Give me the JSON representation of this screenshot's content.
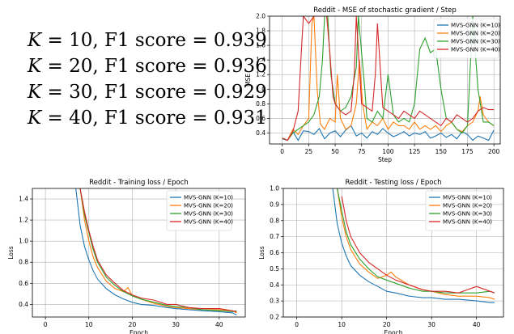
{
  "f1_results": [
    {
      "k_label": "K",
      "k_value": "= 10,",
      "metric": "F1 score",
      "score": "= 0.939"
    },
    {
      "k_label": "K",
      "k_value": "= 20,",
      "metric": "F1 score",
      "score": "= 0.936"
    },
    {
      "k_label": "K",
      "k_value": "= 30,",
      "metric": "F1 score",
      "score": "= 0.929"
    },
    {
      "k_label": "K",
      "k_value": "= 40,",
      "metric": "F1 score",
      "score": "= 0.931"
    }
  ],
  "colors": {
    "K10": "#1f77b4",
    "K20": "#ff7f0e",
    "K30": "#2ca02c",
    "K40": "#d62728"
  },
  "chart_data": [
    {
      "type": "line",
      "title": "Reddit - MSE of stochastic gradient / Step",
      "xlabel": "Step",
      "ylabel": "MSE",
      "xlim": [
        -12,
        206
      ],
      "ylim": [
        0.25,
        2.0
      ],
      "xticks": [
        0,
        25,
        50,
        75,
        100,
        125,
        150,
        175,
        200
      ],
      "yticks": [
        0.4,
        0.6,
        0.8,
        1.0,
        1.2,
        1.4,
        1.6,
        1.8,
        2.0
      ],
      "ytick_labels": [
        "0.4",
        "0.6",
        "0.8",
        "1.0",
        "1.2",
        "1.4",
        "1.6",
        "1.8",
        "2.0"
      ],
      "grid": true,
      "legend": "top-right",
      "series": [
        {
          "name": "MVS-GNN (K=10)",
          "color": "#1f77b4",
          "x": [
            0,
            5,
            10,
            15,
            20,
            25,
            30,
            35,
            40,
            45,
            50,
            55,
            60,
            65,
            70,
            75,
            80,
            85,
            90,
            95,
            100,
            105,
            110,
            115,
            120,
            125,
            130,
            135,
            140,
            145,
            150,
            155,
            160,
            165,
            170,
            175,
            180,
            185,
            190,
            195,
            200
          ],
          "values": [
            0.32,
            0.3,
            0.42,
            0.3,
            0.43,
            0.42,
            0.38,
            0.46,
            0.32,
            0.4,
            0.43,
            0.35,
            0.44,
            0.5,
            0.36,
            0.4,
            0.33,
            0.42,
            0.38,
            0.46,
            0.4,
            0.35,
            0.38,
            0.42,
            0.36,
            0.4,
            0.38,
            0.42,
            0.33,
            0.36,
            0.4,
            0.34,
            0.38,
            0.32,
            0.42,
            0.38,
            0.3,
            0.36,
            0.33,
            0.3,
            0.44
          ]
        },
        {
          "name": "MVS-GNN (K=20)",
          "color": "#ff7f0e",
          "x": [
            0,
            5,
            10,
            15,
            20,
            25,
            28,
            30,
            33,
            36,
            40,
            45,
            50,
            52,
            55,
            60,
            65,
            70,
            73,
            76,
            80,
            85,
            90,
            95,
            100,
            105,
            110,
            115,
            120,
            125,
            130,
            135,
            140,
            145,
            150,
            155,
            160,
            165,
            170,
            175,
            180,
            185,
            187,
            190,
            195,
            200
          ],
          "values": [
            0.33,
            0.3,
            0.45,
            0.38,
            0.5,
            0.6,
            1.9,
            2.0,
            1.0,
            0.52,
            0.45,
            0.6,
            0.55,
            1.2,
            0.6,
            0.45,
            0.5,
            0.8,
            1.4,
            0.8,
            0.45,
            0.55,
            0.5,
            0.6,
            0.45,
            0.55,
            0.5,
            0.5,
            0.45,
            0.55,
            0.45,
            0.5,
            0.45,
            0.5,
            0.42,
            0.5,
            0.55,
            0.45,
            0.42,
            0.5,
            0.55,
            0.7,
            0.9,
            0.65,
            0.55,
            0.5
          ]
        },
        {
          "name": "MVS-GNN (K=30)",
          "color": "#2ca02c",
          "x": [
            0,
            5,
            10,
            15,
            20,
            25,
            30,
            35,
            38,
            40,
            43,
            46,
            50,
            55,
            60,
            65,
            70,
            72,
            75,
            78,
            80,
            85,
            90,
            95,
            100,
            105,
            110,
            115,
            120,
            125,
            130,
            135,
            140,
            145,
            150,
            155,
            160,
            165,
            170,
            175,
            180,
            185,
            190,
            195,
            200
          ],
          "values": [
            0.33,
            0.3,
            0.4,
            0.45,
            0.5,
            0.55,
            0.65,
            0.9,
            1.4,
            2.0,
            2.0,
            1.2,
            0.8,
            0.7,
            0.75,
            0.9,
            1.3,
            2.0,
            1.5,
            1.0,
            0.6,
            0.55,
            0.7,
            0.6,
            1.2,
            0.65,
            0.55,
            0.6,
            0.55,
            0.8,
            1.55,
            1.7,
            1.5,
            1.55,
            1.0,
            0.6,
            0.55,
            0.45,
            0.4,
            0.5,
            2.0,
            1.0,
            0.55,
            0.55,
            0.5
          ]
        },
        {
          "name": "MVS-GNN (K=40)",
          "color": "#d62728",
          "x": [
            0,
            5,
            10,
            15,
            18,
            20,
            25,
            30,
            35,
            40,
            42,
            45,
            48,
            50,
            55,
            60,
            65,
            68,
            70,
            75,
            80,
            85,
            88,
            90,
            95,
            100,
            105,
            110,
            115,
            120,
            125,
            130,
            135,
            140,
            145,
            150,
            155,
            160,
            165,
            170,
            175,
            180,
            185,
            190,
            195,
            200
          ],
          "values": [
            0.33,
            0.3,
            0.42,
            0.7,
            1.5,
            2.0,
            1.9,
            2.0,
            2.0,
            2.0,
            2.0,
            1.5,
            0.9,
            0.8,
            0.7,
            0.65,
            0.7,
            1.2,
            2.0,
            0.8,
            0.75,
            0.7,
            1.2,
            1.9,
            0.75,
            0.7,
            0.65,
            0.6,
            0.7,
            0.65,
            0.6,
            0.7,
            0.65,
            0.6,
            0.55,
            0.5,
            0.6,
            0.55,
            0.65,
            0.6,
            0.55,
            0.6,
            0.7,
            0.75,
            0.72,
            0.72
          ]
        }
      ]
    },
    {
      "type": "line",
      "title": "Reddit - Training loss / Epoch",
      "xlabel": "Epoch",
      "ylabel": "Loss",
      "xlim": [
        -3,
        46
      ],
      "ylim": [
        0.28,
        1.5
      ],
      "xticks": [
        0,
        10,
        20,
        30,
        40
      ],
      "yticks": [
        0.4,
        0.6,
        0.8,
        1.0,
        1.2,
        1.4
      ],
      "ytick_labels": [
        "0.4",
        "0.6",
        "0.8",
        "1.0",
        "1.2",
        "1.4"
      ],
      "grid": true,
      "legend": "top-right",
      "series": [
        {
          "name": "MVS-GNN (K=10)",
          "color": "#1f77b4",
          "x": [
            7,
            8,
            9,
            10,
            11,
            12,
            14,
            16,
            18,
            20,
            22,
            25,
            28,
            30,
            33,
            36,
            40,
            43,
            44
          ],
          "values": [
            1.5,
            1.15,
            0.95,
            0.82,
            0.72,
            0.64,
            0.55,
            0.49,
            0.45,
            0.42,
            0.4,
            0.39,
            0.37,
            0.36,
            0.35,
            0.34,
            0.33,
            0.32,
            0.3
          ]
        },
        {
          "name": "MVS-GNN (K=20)",
          "color": "#ff7f0e",
          "x": [
            8,
            9,
            10,
            11,
            12,
            14,
            16,
            18,
            19,
            20,
            22,
            25,
            28,
            30,
            33,
            36,
            40,
            43,
            44
          ],
          "values": [
            1.5,
            1.2,
            1.0,
            0.85,
            0.75,
            0.62,
            0.55,
            0.52,
            0.56,
            0.48,
            0.45,
            0.41,
            0.38,
            0.37,
            0.36,
            0.35,
            0.35,
            0.34,
            0.32
          ]
        },
        {
          "name": "MVS-GNN (K=30)",
          "color": "#2ca02c",
          "x": [
            8,
            9,
            10,
            11,
            12,
            14,
            16,
            18,
            20,
            22,
            25,
            28,
            30,
            33,
            36,
            40,
            43,
            44
          ],
          "values": [
            1.5,
            1.25,
            1.08,
            0.92,
            0.8,
            0.66,
            0.58,
            0.52,
            0.48,
            0.45,
            0.42,
            0.39,
            0.38,
            0.37,
            0.35,
            0.34,
            0.33,
            0.34
          ]
        },
        {
          "name": "MVS-GNN (K=40)",
          "color": "#d62728",
          "x": [
            8,
            9,
            10,
            11,
            12,
            14,
            16,
            18,
            20,
            22,
            25,
            28,
            30,
            33,
            36,
            40,
            43,
            44
          ],
          "values": [
            1.5,
            1.28,
            1.1,
            0.95,
            0.82,
            0.68,
            0.6,
            0.53,
            0.49,
            0.46,
            0.44,
            0.4,
            0.4,
            0.37,
            0.36,
            0.36,
            0.34,
            0.33
          ]
        }
      ]
    },
    {
      "type": "line",
      "title": "Reddit - Testing loss / Epoch",
      "xlabel": "Epoch",
      "ylabel": "Loss",
      "xlim": [
        -3,
        46
      ],
      "ylim": [
        0.2,
        1.0
      ],
      "xticks": [
        0,
        10,
        20,
        30,
        40
      ],
      "yticks": [
        0.2,
        0.3,
        0.4,
        0.5,
        0.6,
        0.7,
        0.8,
        0.9,
        1.0
      ],
      "ytick_labels": [
        "0.2",
        "0.3",
        "0.4",
        "0.5",
        "0.6",
        "0.7",
        "0.8",
        "0.9",
        "1.0"
      ],
      "grid": true,
      "legend": "top-right",
      "series": [
        {
          "name": "MVS-GNN (K=10)",
          "color": "#1f77b4",
          "x": [
            8,
            9,
            10,
            11,
            12,
            14,
            16,
            18,
            20,
            22,
            25,
            28,
            30,
            33,
            36,
            40,
            43,
            44
          ],
          "values": [
            1.0,
            0.78,
            0.66,
            0.58,
            0.52,
            0.46,
            0.42,
            0.39,
            0.36,
            0.35,
            0.33,
            0.32,
            0.32,
            0.31,
            0.31,
            0.3,
            0.29,
            0.29
          ]
        },
        {
          "name": "MVS-GNN (K=20)",
          "color": "#ff7f0e",
          "x": [
            9,
            10,
            11,
            12,
            14,
            16,
            18,
            20,
            21,
            22,
            25,
            28,
            30,
            33,
            36,
            40,
            43,
            44
          ],
          "values": [
            1.0,
            0.82,
            0.7,
            0.62,
            0.53,
            0.48,
            0.44,
            0.46,
            0.48,
            0.45,
            0.4,
            0.37,
            0.36,
            0.34,
            0.33,
            0.33,
            0.32,
            0.31
          ]
        },
        {
          "name": "MVS-GNN (K=30)",
          "color": "#2ca02c",
          "x": [
            9,
            10,
            11,
            12,
            14,
            16,
            18,
            20,
            22,
            25,
            28,
            30,
            33,
            36,
            40,
            43,
            44
          ],
          "values": [
            1.0,
            0.86,
            0.73,
            0.65,
            0.56,
            0.5,
            0.45,
            0.43,
            0.41,
            0.38,
            0.36,
            0.36,
            0.35,
            0.35,
            0.35,
            0.36,
            0.35
          ]
        },
        {
          "name": "MVS-GNN (K=40)",
          "color": "#d62728",
          "x": [
            10,
            11,
            12,
            14,
            16,
            18,
            20,
            22,
            25,
            28,
            30,
            33,
            36,
            40,
            42,
            44
          ],
          "values": [
            0.95,
            0.8,
            0.7,
            0.6,
            0.54,
            0.5,
            0.46,
            0.43,
            0.4,
            0.37,
            0.36,
            0.36,
            0.35,
            0.39,
            0.37,
            0.35
          ]
        }
      ]
    }
  ]
}
